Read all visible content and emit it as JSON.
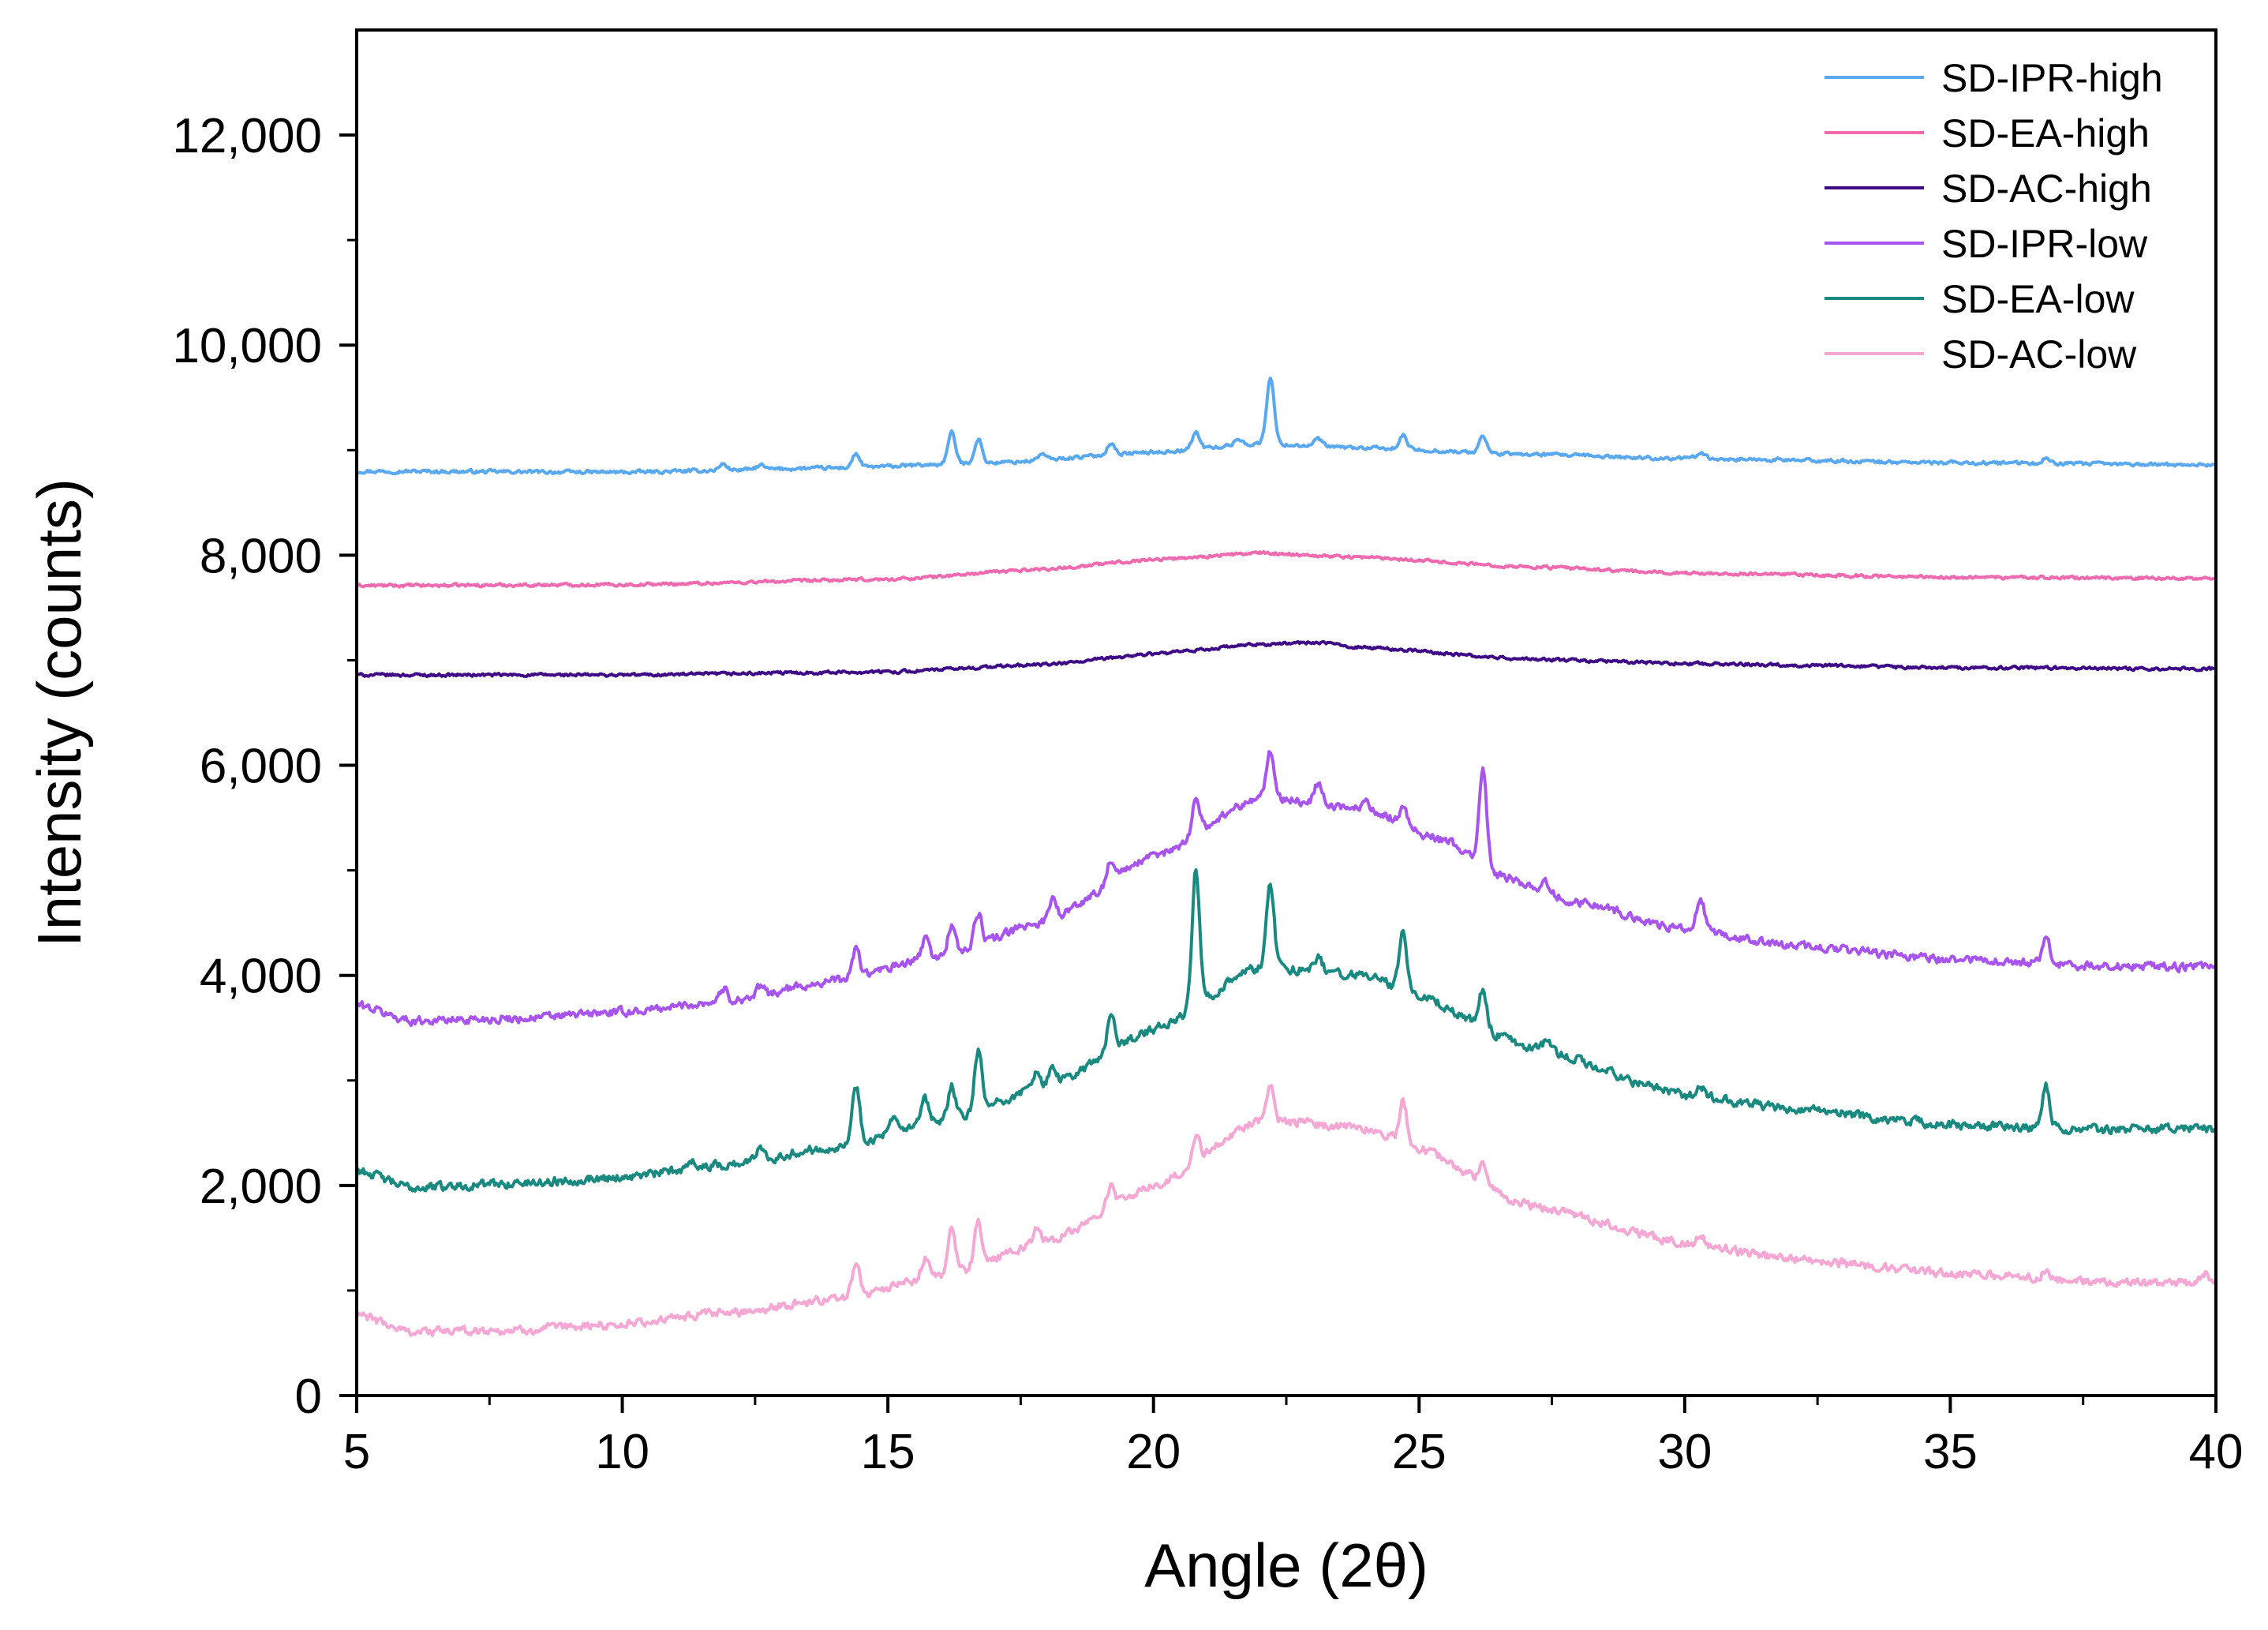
{
  "chart_data": {
    "type": "line",
    "title": "",
    "xlabel": "Angle (2θ)",
    "ylabel": "Intensity (counts)",
    "xlim": [
      5,
      40
    ],
    "ylim": [
      0,
      13000
    ],
    "grid": false,
    "legend_position": "top-right",
    "xticks": [
      5,
      10,
      15,
      20,
      25,
      30,
      35,
      40
    ],
    "xtick_labels": [
      "5",
      "10",
      "15",
      "20",
      "25",
      "30",
      "35",
      "40"
    ],
    "yticks": [
      0,
      2000,
      4000,
      6000,
      8000,
      10000,
      12000
    ],
    "ytick_labels": [
      "0",
      "2,000",
      "4,000",
      "6,000",
      "8,000",
      "10,000",
      "12,000"
    ],
    "series": [
      {
        "name": "SD-IPR-high",
        "color": "#5aa9f0",
        "baseline": [
          [
            5,
            8800
          ],
          [
            10,
            8790
          ],
          [
            14,
            8830
          ],
          [
            17,
            8880
          ],
          [
            20,
            8980
          ],
          [
            22,
            9060
          ],
          [
            24,
            9020
          ],
          [
            27,
            8960
          ],
          [
            30,
            8920
          ],
          [
            35,
            8880
          ],
          [
            40,
            8860
          ]
        ],
        "peaks": [
          [
            11.9,
            60
          ],
          [
            12.6,
            40
          ],
          [
            14.4,
            130
          ],
          [
            16.2,
            300
          ],
          [
            16.7,
            230
          ],
          [
            17.9,
            60
          ],
          [
            19.2,
            110
          ],
          [
            20.8,
            160
          ],
          [
            21.6,
            60
          ],
          [
            22.2,
            640
          ],
          [
            23.1,
            70
          ],
          [
            24.7,
            130
          ],
          [
            26.2,
            160
          ],
          [
            30.3,
            70
          ],
          [
            36.8,
            50
          ]
        ],
        "noise": 14
      },
      {
        "name": "SD-EA-high",
        "color": "#f06ab0",
        "baseline": [
          [
            5,
            7710
          ],
          [
            10,
            7720
          ],
          [
            15,
            7770
          ],
          [
            18,
            7870
          ],
          [
            20,
            7960
          ],
          [
            22,
            8020
          ],
          [
            24,
            7980
          ],
          [
            27,
            7890
          ],
          [
            30,
            7830
          ],
          [
            35,
            7790
          ],
          [
            40,
            7780
          ]
        ],
        "peaks": [],
        "noise": 12
      },
      {
        "name": "SD-AC-high",
        "color": "#3f0a86",
        "baseline": [
          [
            5,
            6860
          ],
          [
            10,
            6860
          ],
          [
            15,
            6890
          ],
          [
            18,
            6960
          ],
          [
            20,
            7060
          ],
          [
            22,
            7150
          ],
          [
            23,
            7170
          ],
          [
            24,
            7120
          ],
          [
            27,
            7010
          ],
          [
            30,
            6970
          ],
          [
            35,
            6930
          ],
          [
            40,
            6920
          ]
        ],
        "peaks": [],
        "noise": 12
      },
      {
        "name": "SD-IPR-low",
        "color": "#a855f0",
        "baseline": [
          [
            5,
            3720
          ],
          [
            6,
            3570
          ],
          [
            8,
            3590
          ],
          [
            10,
            3650
          ],
          [
            12,
            3760
          ],
          [
            14,
            3950
          ],
          [
            16,
            4180
          ],
          [
            18,
            4520
          ],
          [
            20,
            5130
          ],
          [
            22,
            5700
          ],
          [
            24,
            5580
          ],
          [
            25.5,
            5280
          ],
          [
            26.5,
            4950
          ],
          [
            28,
            4700
          ],
          [
            30,
            4430
          ],
          [
            32,
            4280
          ],
          [
            35,
            4150
          ],
          [
            38,
            4090
          ],
          [
            40,
            4080
          ]
        ],
        "peaks": [
          [
            11.9,
            120
          ],
          [
            12.6,
            80
          ],
          [
            14.4,
            270
          ],
          [
            15.7,
            190
          ],
          [
            16.2,
            280
          ],
          [
            16.7,
            300
          ],
          [
            18.1,
            200
          ],
          [
            19.2,
            200
          ],
          [
            20.8,
            340
          ],
          [
            22.2,
            430
          ],
          [
            23.1,
            200
          ],
          [
            24.0,
            100
          ],
          [
            24.7,
            160
          ],
          [
            26.2,
            950
          ],
          [
            27.4,
            80
          ],
          [
            30.3,
            330
          ],
          [
            36.8,
            260
          ]
        ],
        "noise": 34
      },
      {
        "name": "SD-EA-low",
        "color": "#1a8a80",
        "baseline": [
          [
            5,
            2150
          ],
          [
            6,
            1980
          ],
          [
            8,
            2020
          ],
          [
            10,
            2080
          ],
          [
            12,
            2200
          ],
          [
            14,
            2370
          ],
          [
            16,
            2600
          ],
          [
            18,
            2950
          ],
          [
            20,
            3480
          ],
          [
            22,
            4080
          ],
          [
            24,
            4000
          ],
          [
            25,
            3800
          ],
          [
            27,
            3330
          ],
          [
            30,
            2860
          ],
          [
            32,
            2730
          ],
          [
            35,
            2580
          ],
          [
            38,
            2530
          ],
          [
            40,
            2540
          ]
        ],
        "peaks": [
          [
            11.3,
            90
          ],
          [
            12.6,
            140
          ],
          [
            14.4,
            540
          ],
          [
            15.1,
            120
          ],
          [
            15.7,
            240
          ],
          [
            16.2,
            320
          ],
          [
            16.7,
            560
          ],
          [
            17.8,
            170
          ],
          [
            18.1,
            150
          ],
          [
            19.2,
            350
          ],
          [
            20.8,
            1320
          ],
          [
            22.2,
            800
          ],
          [
            23.1,
            150
          ],
          [
            24.7,
            560
          ],
          [
            26.2,
            360
          ],
          [
            27.4,
            90
          ],
          [
            30.3,
            90
          ],
          [
            36.8,
            390
          ]
        ],
        "noise": 36
      },
      {
        "name": "SD-AC-low",
        "color": "#f5a8d4",
        "baseline": [
          [
            5,
            770
          ],
          [
            6,
            610
          ],
          [
            8,
            620
          ],
          [
            10,
            680
          ],
          [
            12,
            790
          ],
          [
            14,
            920
          ],
          [
            16,
            1130
          ],
          [
            18,
            1470
          ],
          [
            20,
            1990
          ],
          [
            22,
            2620
          ],
          [
            24,
            2550
          ],
          [
            25,
            2350
          ],
          [
            27,
            1820
          ],
          [
            30,
            1450
          ],
          [
            32,
            1300
          ],
          [
            35,
            1160
          ],
          [
            38,
            1070
          ],
          [
            40,
            1080
          ]
        ],
        "peaks": [
          [
            14.4,
            330
          ],
          [
            15.7,
            200
          ],
          [
            16.2,
            480
          ],
          [
            16.7,
            420
          ],
          [
            17.8,
            130
          ],
          [
            19.2,
            200
          ],
          [
            20.8,
            250
          ],
          [
            22.2,
            350
          ],
          [
            24.7,
            400
          ],
          [
            26.2,
            180
          ],
          [
            30.3,
            80
          ],
          [
            36.8,
            80
          ],
          [
            39.8,
            90
          ]
        ],
        "noise": 34
      }
    ]
  }
}
